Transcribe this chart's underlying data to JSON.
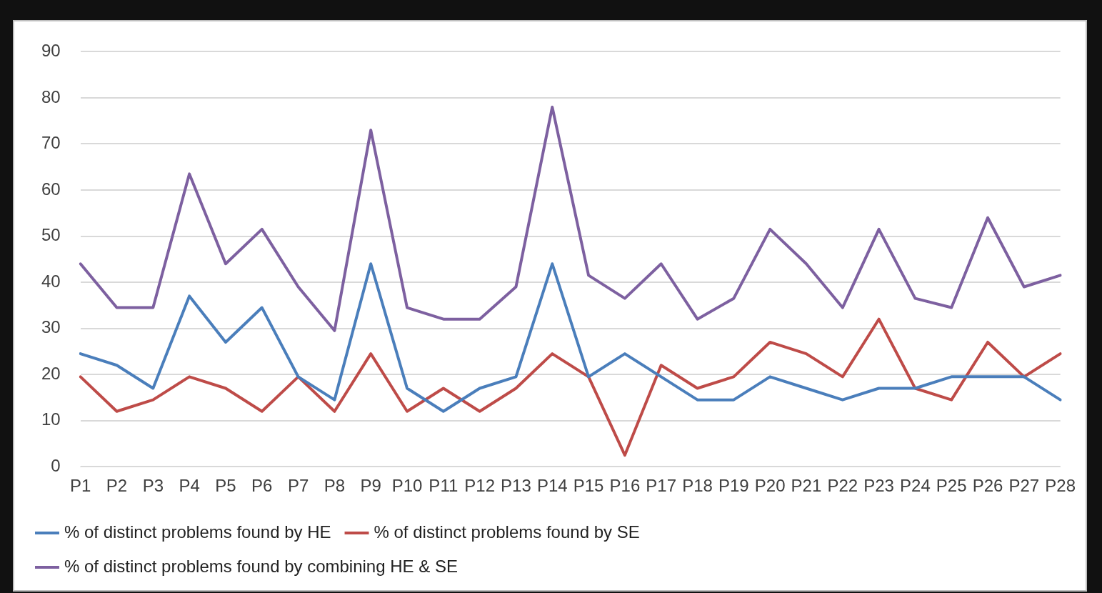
{
  "chart_data": {
    "type": "line",
    "categories": [
      "P1",
      "P2",
      "P3",
      "P4",
      "P5",
      "P6",
      "P7",
      "P8",
      "P9",
      "P10",
      "P11",
      "P12",
      "P13",
      "P14",
      "P15",
      "P16",
      "P17",
      "P18",
      "P19",
      "P20",
      "P21",
      "P22",
      "P23",
      "P24",
      "P25",
      "P26",
      "P27",
      "P28"
    ],
    "series": [
      {
        "name": "% of distinct problems found by HE",
        "color": "#4a7ebb",
        "values": [
          24.5,
          22,
          17,
          37,
          27,
          34.5,
          19.5,
          14.5,
          44,
          17,
          12,
          17,
          19.5,
          44,
          19.5,
          24.5,
          19.5,
          14.5,
          14.5,
          19.5,
          17,
          14.5,
          17,
          17,
          19.5,
          19.5,
          19.5,
          14.5
        ]
      },
      {
        "name": "% of distinct problems found by SE",
        "color": "#be4b48",
        "values": [
          19.5,
          12,
          14.5,
          19.5,
          17,
          12,
          19.5,
          12,
          24.5,
          12,
          17,
          12,
          17,
          24.5,
          19.5,
          2.5,
          22,
          17,
          19.5,
          27,
          24.5,
          19.5,
          32,
          17,
          14.5,
          27,
          19.5,
          24.5
        ]
      },
      {
        "name": "% of distinct problems found by combining HE & SE",
        "color": "#7d60a0",
        "values": [
          44,
          34.5,
          34.5,
          63.5,
          44,
          51.5,
          39,
          29.5,
          73,
          34.5,
          32,
          32,
          39,
          78,
          41.5,
          36.5,
          44,
          32,
          36.5,
          51.5,
          44,
          34.5,
          51.5,
          36.5,
          34.5,
          54,
          39,
          41.5
        ]
      }
    ],
    "ylim": [
      0,
      90
    ],
    "yticks": [
      0,
      10,
      20,
      30,
      40,
      50,
      60,
      70,
      80,
      90
    ],
    "grid": "y",
    "legend": "bottom",
    "marker": "none",
    "line_style": "solid"
  }
}
